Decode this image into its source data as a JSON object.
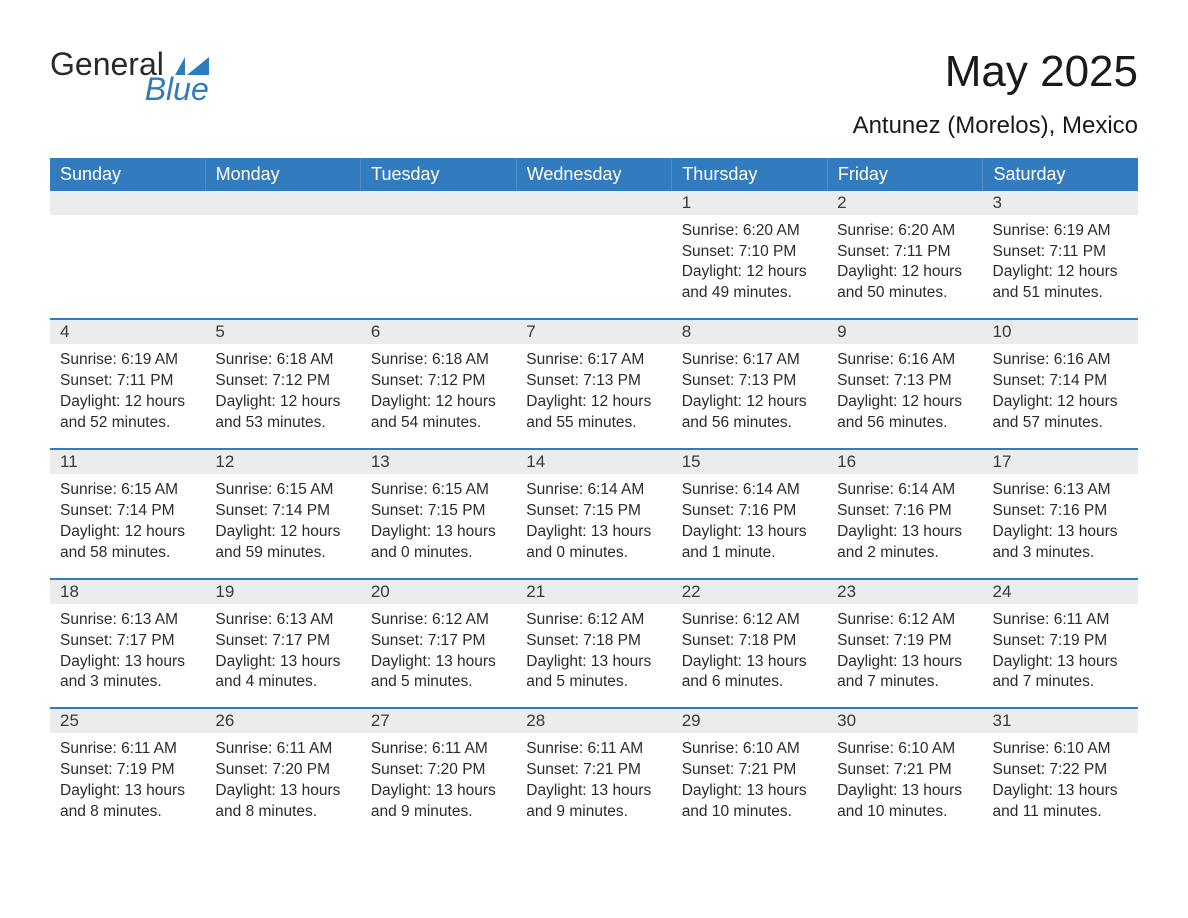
{
  "brand": {
    "general": "General",
    "blue": "Blue"
  },
  "title": "May 2025",
  "subtitle": "Antunez (Morelos), Mexico",
  "colors": {
    "header_bg": "#327bbf",
    "header_text": "#ffffff",
    "daynum_bg": "#ececec",
    "border": "#327bbf",
    "text": "#2b2b2b",
    "brand_blue": "#2f7bbf"
  },
  "typography": {
    "title_fontsize": 44,
    "subtitle_fontsize": 24,
    "dow_fontsize": 18,
    "body_fontsize": 15.5
  },
  "daysOfWeek": [
    "Sunday",
    "Monday",
    "Tuesday",
    "Wednesday",
    "Thursday",
    "Friday",
    "Saturday"
  ],
  "labels": {
    "sunrise": "Sunrise: ",
    "sunset": "Sunset: ",
    "daylight": "Daylight: "
  },
  "weeks": [
    [
      null,
      null,
      null,
      null,
      {
        "n": "1",
        "sunrise": "6:20 AM",
        "sunset": "7:10 PM",
        "daylight": "12 hours and 49 minutes."
      },
      {
        "n": "2",
        "sunrise": "6:20 AM",
        "sunset": "7:11 PM",
        "daylight": "12 hours and 50 minutes."
      },
      {
        "n": "3",
        "sunrise": "6:19 AM",
        "sunset": "7:11 PM",
        "daylight": "12 hours and 51 minutes."
      }
    ],
    [
      {
        "n": "4",
        "sunrise": "6:19 AM",
        "sunset": "7:11 PM",
        "daylight": "12 hours and 52 minutes."
      },
      {
        "n": "5",
        "sunrise": "6:18 AM",
        "sunset": "7:12 PM",
        "daylight": "12 hours and 53 minutes."
      },
      {
        "n": "6",
        "sunrise": "6:18 AM",
        "sunset": "7:12 PM",
        "daylight": "12 hours and 54 minutes."
      },
      {
        "n": "7",
        "sunrise": "6:17 AM",
        "sunset": "7:13 PM",
        "daylight": "12 hours and 55 minutes."
      },
      {
        "n": "8",
        "sunrise": "6:17 AM",
        "sunset": "7:13 PM",
        "daylight": "12 hours and 56 minutes."
      },
      {
        "n": "9",
        "sunrise": "6:16 AM",
        "sunset": "7:13 PM",
        "daylight": "12 hours and 56 minutes."
      },
      {
        "n": "10",
        "sunrise": "6:16 AM",
        "sunset": "7:14 PM",
        "daylight": "12 hours and 57 minutes."
      }
    ],
    [
      {
        "n": "11",
        "sunrise": "6:15 AM",
        "sunset": "7:14 PM",
        "daylight": "12 hours and 58 minutes."
      },
      {
        "n": "12",
        "sunrise": "6:15 AM",
        "sunset": "7:14 PM",
        "daylight": "12 hours and 59 minutes."
      },
      {
        "n": "13",
        "sunrise": "6:15 AM",
        "sunset": "7:15 PM",
        "daylight": "13 hours and 0 minutes."
      },
      {
        "n": "14",
        "sunrise": "6:14 AM",
        "sunset": "7:15 PM",
        "daylight": "13 hours and 0 minutes."
      },
      {
        "n": "15",
        "sunrise": "6:14 AM",
        "sunset": "7:16 PM",
        "daylight": "13 hours and 1 minute."
      },
      {
        "n": "16",
        "sunrise": "6:14 AM",
        "sunset": "7:16 PM",
        "daylight": "13 hours and 2 minutes."
      },
      {
        "n": "17",
        "sunrise": "6:13 AM",
        "sunset": "7:16 PM",
        "daylight": "13 hours and 3 minutes."
      }
    ],
    [
      {
        "n": "18",
        "sunrise": "6:13 AM",
        "sunset": "7:17 PM",
        "daylight": "13 hours and 3 minutes."
      },
      {
        "n": "19",
        "sunrise": "6:13 AM",
        "sunset": "7:17 PM",
        "daylight": "13 hours and 4 minutes."
      },
      {
        "n": "20",
        "sunrise": "6:12 AM",
        "sunset": "7:17 PM",
        "daylight": "13 hours and 5 minutes."
      },
      {
        "n": "21",
        "sunrise": "6:12 AM",
        "sunset": "7:18 PM",
        "daylight": "13 hours and 5 minutes."
      },
      {
        "n": "22",
        "sunrise": "6:12 AM",
        "sunset": "7:18 PM",
        "daylight": "13 hours and 6 minutes."
      },
      {
        "n": "23",
        "sunrise": "6:12 AM",
        "sunset": "7:19 PM",
        "daylight": "13 hours and 7 minutes."
      },
      {
        "n": "24",
        "sunrise": "6:11 AM",
        "sunset": "7:19 PM",
        "daylight": "13 hours and 7 minutes."
      }
    ],
    [
      {
        "n": "25",
        "sunrise": "6:11 AM",
        "sunset": "7:19 PM",
        "daylight": "13 hours and 8 minutes."
      },
      {
        "n": "26",
        "sunrise": "6:11 AM",
        "sunset": "7:20 PM",
        "daylight": "13 hours and 8 minutes."
      },
      {
        "n": "27",
        "sunrise": "6:11 AM",
        "sunset": "7:20 PM",
        "daylight": "13 hours and 9 minutes."
      },
      {
        "n": "28",
        "sunrise": "6:11 AM",
        "sunset": "7:21 PM",
        "daylight": "13 hours and 9 minutes."
      },
      {
        "n": "29",
        "sunrise": "6:10 AM",
        "sunset": "7:21 PM",
        "daylight": "13 hours and 10 minutes."
      },
      {
        "n": "30",
        "sunrise": "6:10 AM",
        "sunset": "7:21 PM",
        "daylight": "13 hours and 10 minutes."
      },
      {
        "n": "31",
        "sunrise": "6:10 AM",
        "sunset": "7:22 PM",
        "daylight": "13 hours and 11 minutes."
      }
    ]
  ]
}
